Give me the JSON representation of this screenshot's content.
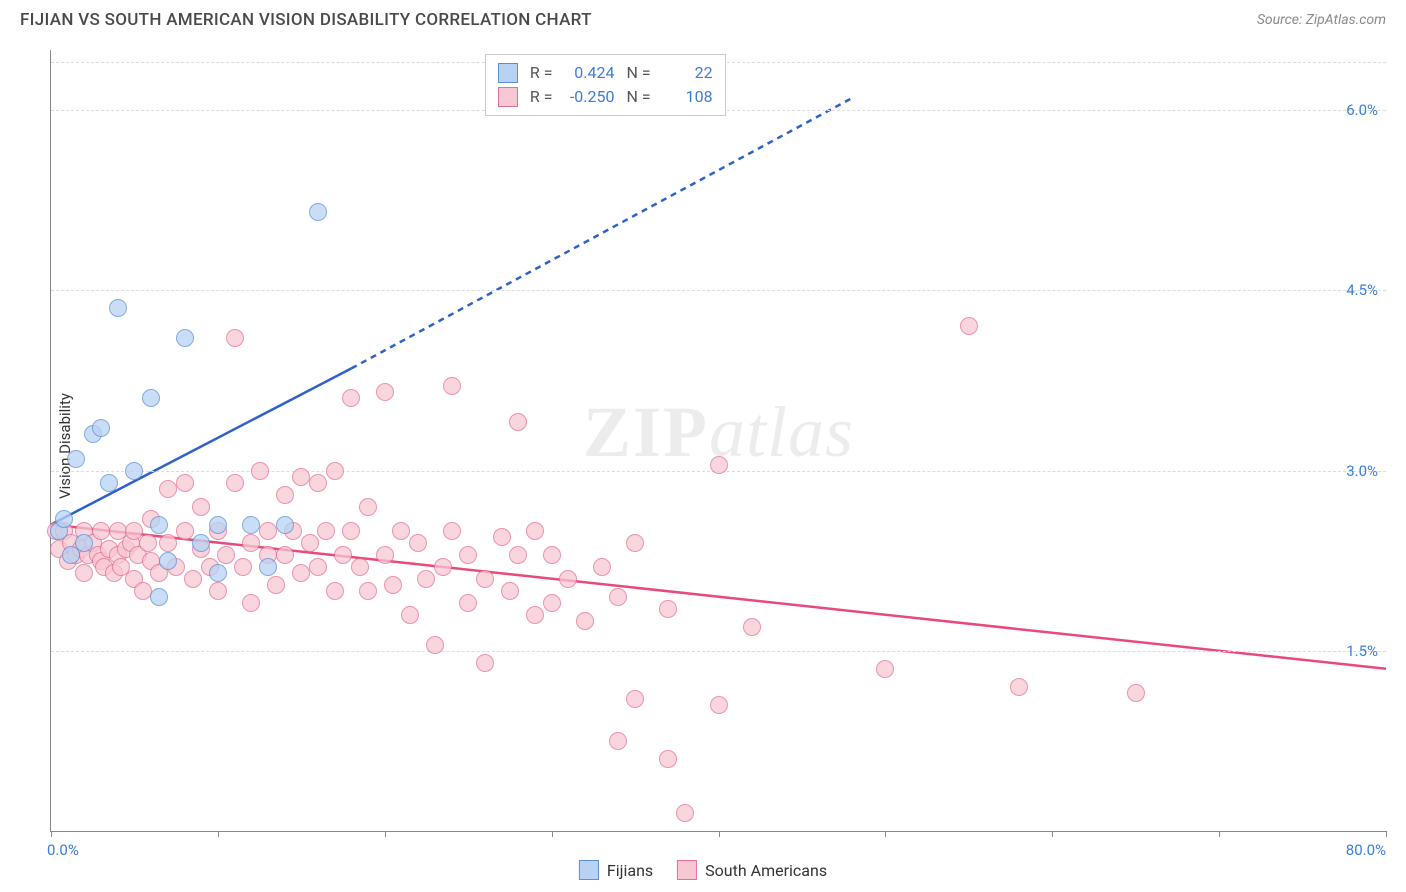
{
  "header": {
    "title": "FIJIAN VS SOUTH AMERICAN VISION DISABILITY CORRELATION CHART",
    "source_label": "Source: ZipAtlas.com"
  },
  "chart": {
    "type": "scatter",
    "ylabel": "Vision Disability",
    "xlim": [
      0,
      80
    ],
    "ylim": [
      0,
      6.5
    ],
    "x_tick_step": 10,
    "y_gridlines": [
      1.5,
      3.0,
      4.5,
      6.0
    ],
    "y_tick_labels": [
      "1.5%",
      "3.0%",
      "4.5%",
      "6.0%"
    ],
    "x_min_label": "0.0%",
    "x_max_label": "80.0%",
    "background_color": "#ffffff",
    "grid_color": "#dcdcdc",
    "axis_color": "#888888",
    "label_color": "#3b7dd8",
    "watermark_zip": "ZIP",
    "watermark_atlas": "atlas",
    "series": {
      "fijians": {
        "label": "Fijians",
        "fill": "#b7d2f3",
        "stroke": "#5a8fd6",
        "r_value": "0.424",
        "n_value": "22",
        "trend": {
          "x1": 0,
          "y1": 2.55,
          "x2_solid": 18,
          "y2_solid": 3.85,
          "x2_dash": 48,
          "y2_dash": 6.1,
          "color": "#2f62c8"
        },
        "marker_radius": 9,
        "points": [
          [
            0.5,
            2.5
          ],
          [
            0.8,
            2.6
          ],
          [
            1.2,
            2.3
          ],
          [
            1.5,
            3.1
          ],
          [
            2,
            2.4
          ],
          [
            2.5,
            3.3
          ],
          [
            3,
            3.35
          ],
          [
            3.5,
            2.9
          ],
          [
            4,
            4.35
          ],
          [
            5,
            3.0
          ],
          [
            6,
            3.6
          ],
          [
            6.5,
            2.55
          ],
          [
            6.5,
            1.95
          ],
          [
            7,
            2.25
          ],
          [
            8,
            4.1
          ],
          [
            9,
            2.4
          ],
          [
            10,
            2.55
          ],
          [
            10,
            2.15
          ],
          [
            12,
            2.55
          ],
          [
            13,
            2.2
          ],
          [
            14,
            2.55
          ],
          [
            16,
            5.15
          ]
        ]
      },
      "south_americans": {
        "label": "South Americans",
        "fill": "#f8c7d4",
        "stroke": "#e36f91",
        "r_value": "-0.250",
        "n_value": "108",
        "trend": {
          "x1": 0,
          "y1": 2.55,
          "x2": 80,
          "y2": 1.35,
          "color": "#e84a7a"
        },
        "marker_radius": 9,
        "points": [
          [
            0.3,
            2.5
          ],
          [
            0.5,
            2.35
          ],
          [
            0.8,
            2.5
          ],
          [
            1,
            2.25
          ],
          [
            1.2,
            2.4
          ],
          [
            1.5,
            2.3
          ],
          [
            1.8,
            2.35
          ],
          [
            2,
            2.5
          ],
          [
            2,
            2.15
          ],
          [
            2.2,
            2.3
          ],
          [
            2.5,
            2.4
          ],
          [
            2.8,
            2.3
          ],
          [
            3,
            2.25
          ],
          [
            3,
            2.5
          ],
          [
            3.2,
            2.2
          ],
          [
            3.5,
            2.35
          ],
          [
            3.8,
            2.15
          ],
          [
            4,
            2.3
          ],
          [
            4,
            2.5
          ],
          [
            4.2,
            2.2
          ],
          [
            4.5,
            2.35
          ],
          [
            4.8,
            2.4
          ],
          [
            5,
            2.1
          ],
          [
            5,
            2.5
          ],
          [
            5.2,
            2.3
          ],
          [
            5.5,
            2.0
          ],
          [
            5.8,
            2.4
          ],
          [
            6,
            2.25
          ],
          [
            6,
            2.6
          ],
          [
            6.5,
            2.15
          ],
          [
            7,
            2.4
          ],
          [
            7,
            2.85
          ],
          [
            7.5,
            2.2
          ],
          [
            8,
            2.5
          ],
          [
            8,
            2.9
          ],
          [
            8.5,
            2.1
          ],
          [
            9,
            2.35
          ],
          [
            9,
            2.7
          ],
          [
            9.5,
            2.2
          ],
          [
            10,
            2.0
          ],
          [
            10,
            2.5
          ],
          [
            10.5,
            2.3
          ],
          [
            11,
            2.9
          ],
          [
            11,
            4.1
          ],
          [
            11.5,
            2.2
          ],
          [
            12,
            1.9
          ],
          [
            12,
            2.4
          ],
          [
            12.5,
            3.0
          ],
          [
            13,
            2.3
          ],
          [
            13,
            2.5
          ],
          [
            13.5,
            2.05
          ],
          [
            14,
            2.8
          ],
          [
            14,
            2.3
          ],
          [
            14.5,
            2.5
          ],
          [
            15,
            2.95
          ],
          [
            15,
            2.15
          ],
          [
            15.5,
            2.4
          ],
          [
            16,
            2.9
          ],
          [
            16,
            2.2
          ],
          [
            16.5,
            2.5
          ],
          [
            17,
            2.0
          ],
          [
            17,
            3.0
          ],
          [
            17.5,
            2.3
          ],
          [
            18,
            2.5
          ],
          [
            18,
            3.6
          ],
          [
            18.5,
            2.2
          ],
          [
            19,
            2.0
          ],
          [
            19,
            2.7
          ],
          [
            20,
            3.65
          ],
          [
            20,
            2.3
          ],
          [
            20.5,
            2.05
          ],
          [
            21,
            2.5
          ],
          [
            21.5,
            1.8
          ],
          [
            22,
            2.4
          ],
          [
            22.5,
            2.1
          ],
          [
            23,
            1.55
          ],
          [
            23.5,
            2.2
          ],
          [
            24,
            2.5
          ],
          [
            24,
            3.7
          ],
          [
            25,
            2.3
          ],
          [
            25,
            1.9
          ],
          [
            26,
            2.1
          ],
          [
            26,
            1.4
          ],
          [
            27,
            2.45
          ],
          [
            27.5,
            2.0
          ],
          [
            28,
            3.4
          ],
          [
            28,
            2.3
          ],
          [
            29,
            1.8
          ],
          [
            29,
            2.5
          ],
          [
            30,
            1.9
          ],
          [
            30,
            2.3
          ],
          [
            31,
            2.1
          ],
          [
            32,
            1.75
          ],
          [
            33,
            2.2
          ],
          [
            34,
            0.75
          ],
          [
            34,
            1.95
          ],
          [
            35,
            1.1
          ],
          [
            35,
            2.4
          ],
          [
            37,
            1.85
          ],
          [
            37,
            0.6
          ],
          [
            38,
            0.15
          ],
          [
            40,
            1.05
          ],
          [
            40,
            3.05
          ],
          [
            42,
            1.7
          ],
          [
            50,
            1.35
          ],
          [
            55,
            4.2
          ],
          [
            58,
            1.2
          ],
          [
            65,
            1.15
          ]
        ]
      }
    }
  },
  "legend": {
    "r_label": "R =",
    "n_label": "N ="
  }
}
